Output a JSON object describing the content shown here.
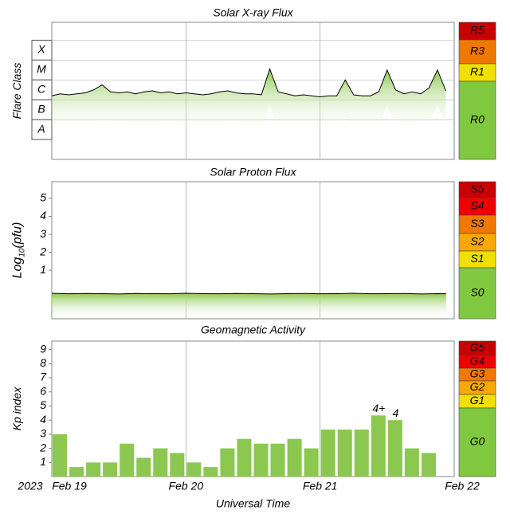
{
  "chart_data": [
    {
      "type": "area",
      "title": "Solar X-ray Flux",
      "ylabel": "Flare Class",
      "xlim": [
        0,
        3
      ],
      "ylim": [
        -9.5,
        -2.6
      ],
      "yticks": [
        {
          "value": -4,
          "label": "X"
        },
        {
          "value": -5,
          "label": "M"
        },
        {
          "value": -6,
          "label": "C"
        },
        {
          "value": -7,
          "label": "B"
        },
        {
          "value": -8,
          "label": "A"
        }
      ],
      "x": [
        0,
        0.0625,
        0.125,
        0.1875,
        0.25,
        0.3125,
        0.375,
        0.4375,
        0.5,
        0.5625,
        0.625,
        0.6875,
        0.75,
        0.8125,
        0.875,
        0.9375,
        1,
        1.0625,
        1.125,
        1.1875,
        1.25,
        1.3125,
        1.375,
        1.4375,
        1.5,
        1.5625,
        1.625,
        1.6875,
        1.75,
        1.8125,
        1.875,
        1.9375,
        2,
        2.0625,
        2.125,
        2.1875,
        2.25,
        2.3125,
        2.375,
        2.4375,
        2.5,
        2.5625,
        2.625,
        2.6875,
        2.75,
        2.8125,
        2.875,
        2.9375
      ],
      "values": [
        -6.3,
        -6.2,
        -6.25,
        -6.2,
        -6.15,
        -6.0,
        -5.75,
        -6.1,
        -6.15,
        -6.1,
        -6.2,
        -6.1,
        -6.05,
        -6.15,
        -6.1,
        -6.2,
        -6.15,
        -6.2,
        -6.25,
        -6.2,
        -6.1,
        -6.05,
        -6.15,
        -6.2,
        -6.2,
        -6.25,
        -4.95,
        -6.1,
        -6.2,
        -6.3,
        -6.25,
        -6.3,
        -6.35,
        -6.3,
        -6.3,
        -5.5,
        -6.25,
        -6.3,
        -6.3,
        -6.1,
        -5.0,
        -6.0,
        -6.2,
        -6.1,
        -6.2,
        -5.9,
        -5.0,
        -6.05
      ],
      "color": "#8cc850",
      "xticks": [
        {
          "value": 1,
          "label": "Feb 20"
        },
        {
          "value": 2,
          "label": "Feb 21"
        }
      ],
      "scale": [
        {
          "label": "R5",
          "color": "#c80000"
        },
        {
          "label": "R3",
          "color": "#f07800"
        },
        {
          "label": "R1",
          "color": "#f0e000"
        },
        {
          "label": "R0",
          "color": "#80c840"
        }
      ]
    },
    {
      "type": "area",
      "title": "Solar Proton Flux",
      "ylabel": [
        "Log",
        "10",
        "(pfu)"
      ],
      "xlim": [
        0,
        3
      ],
      "ylim": [
        -1.7,
        5.93
      ],
      "yticks": [
        1,
        2,
        3,
        4,
        5
      ],
      "x": [
        0,
        0.125,
        0.25,
        0.375,
        0.5,
        0.625,
        0.75,
        0.875,
        1,
        1.125,
        1.25,
        1.375,
        1.5,
        1.625,
        1.75,
        1.875,
        2,
        2.125,
        2.25,
        2.375,
        2.5,
        2.625,
        2.75,
        2.875,
        2.94
      ],
      "values": [
        -0.28,
        -0.31,
        -0.29,
        -0.3,
        -0.32,
        -0.29,
        -0.3,
        -0.31,
        -0.28,
        -0.3,
        -0.31,
        -0.29,
        -0.3,
        -0.32,
        -0.3,
        -0.29,
        -0.31,
        -0.3,
        -0.28,
        -0.31,
        -0.3,
        -0.29,
        -0.32,
        -0.3,
        -0.31
      ],
      "color": "#8cc850",
      "xticks": [
        {
          "value": 1,
          "label": "Feb 20"
        },
        {
          "value": 2,
          "label": "Feb 21"
        }
      ],
      "scale": [
        {
          "label": "S5",
          "color": "#c80000"
        },
        {
          "label": "S4",
          "color": "#f00000"
        },
        {
          "label": "S3",
          "color": "#f07800"
        },
        {
          "label": "S2",
          "color": "#f8a800"
        },
        {
          "label": "S1",
          "color": "#f0e000"
        },
        {
          "label": "S0",
          "color": "#80c840"
        }
      ]
    },
    {
      "type": "bar",
      "title": "Geomagnetic Activity",
      "ylabel": "Kp index",
      "xlim": [
        0,
        3
      ],
      "ylim": [
        0,
        9.6
      ],
      "yticks": [
        1,
        2,
        3,
        4,
        5,
        6,
        7,
        8,
        9
      ],
      "x": [
        0,
        0.125,
        0.25,
        0.375,
        0.5,
        0.625,
        0.75,
        0.875,
        1,
        1.125,
        1.25,
        1.375,
        1.5,
        1.625,
        1.75,
        1.875,
        2,
        2.125,
        2.25,
        2.375,
        2.5,
        2.625,
        2.75
      ],
      "values": [
        3,
        0.67,
        1,
        1,
        2.33,
        1.33,
        2,
        1.67,
        1,
        0.67,
        2,
        2.67,
        2.33,
        2.33,
        2.67,
        2,
        3.33,
        3.33,
        3.33,
        4.33,
        4,
        2,
        1.67
      ],
      "value_labels": [
        null,
        null,
        null,
        null,
        null,
        null,
        null,
        null,
        null,
        null,
        null,
        null,
        null,
        null,
        null,
        null,
        null,
        null,
        null,
        "4+",
        "4",
        null,
        null
      ],
      "color": "#8cc850",
      "xticks": [
        {
          "value": 0,
          "label": "Feb 19"
        },
        {
          "value": 1,
          "label": "Feb 20"
        },
        {
          "value": 2,
          "label": "Feb 21"
        },
        {
          "value": 3,
          "label": "Feb 22"
        }
      ],
      "year_label": "2023",
      "xlabel": "Universal Time",
      "scale": [
        {
          "label": "G5",
          "color": "#c80000"
        },
        {
          "label": "G4",
          "color": "#f00000"
        },
        {
          "label": "G3",
          "color": "#f07800"
        },
        {
          "label": "G2",
          "color": "#f8a800"
        },
        {
          "label": "G1",
          "color": "#f0e000"
        },
        {
          "label": "G0",
          "color": "#80c840"
        }
      ]
    }
  ]
}
